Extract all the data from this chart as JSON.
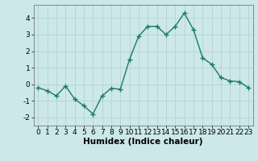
{
  "xlabel": "Humidex (Indice chaleur)",
  "x": [
    0,
    1,
    2,
    3,
    4,
    5,
    6,
    7,
    8,
    9,
    10,
    11,
    12,
    13,
    14,
    15,
    16,
    17,
    18,
    19,
    20,
    21,
    22,
    23
  ],
  "y": [
    -0.2,
    -0.4,
    -0.7,
    -0.1,
    -0.9,
    -1.3,
    -1.8,
    -0.7,
    -0.25,
    -0.3,
    1.5,
    2.9,
    3.5,
    3.5,
    3.0,
    3.5,
    4.3,
    3.3,
    1.6,
    1.2,
    0.4,
    0.2,
    0.15,
    -0.2
  ],
  "line_color": "#1a7a6a",
  "marker": "+",
  "marker_size": 4,
  "marker_edge_width": 1.0,
  "bg_color": "#cce8e8",
  "grid_color": "#b8d4d4",
  "ylim": [
    -2.5,
    4.8
  ],
  "yticks": [
    -2,
    -1,
    0,
    1,
    2,
    3,
    4
  ],
  "xticks": [
    0,
    1,
    2,
    3,
    4,
    5,
    6,
    7,
    8,
    9,
    10,
    11,
    12,
    13,
    14,
    15,
    16,
    17,
    18,
    19,
    20,
    21,
    22,
    23
  ],
  "tick_fontsize": 6.5,
  "xlabel_fontsize": 7.5,
  "line_width": 1.0
}
